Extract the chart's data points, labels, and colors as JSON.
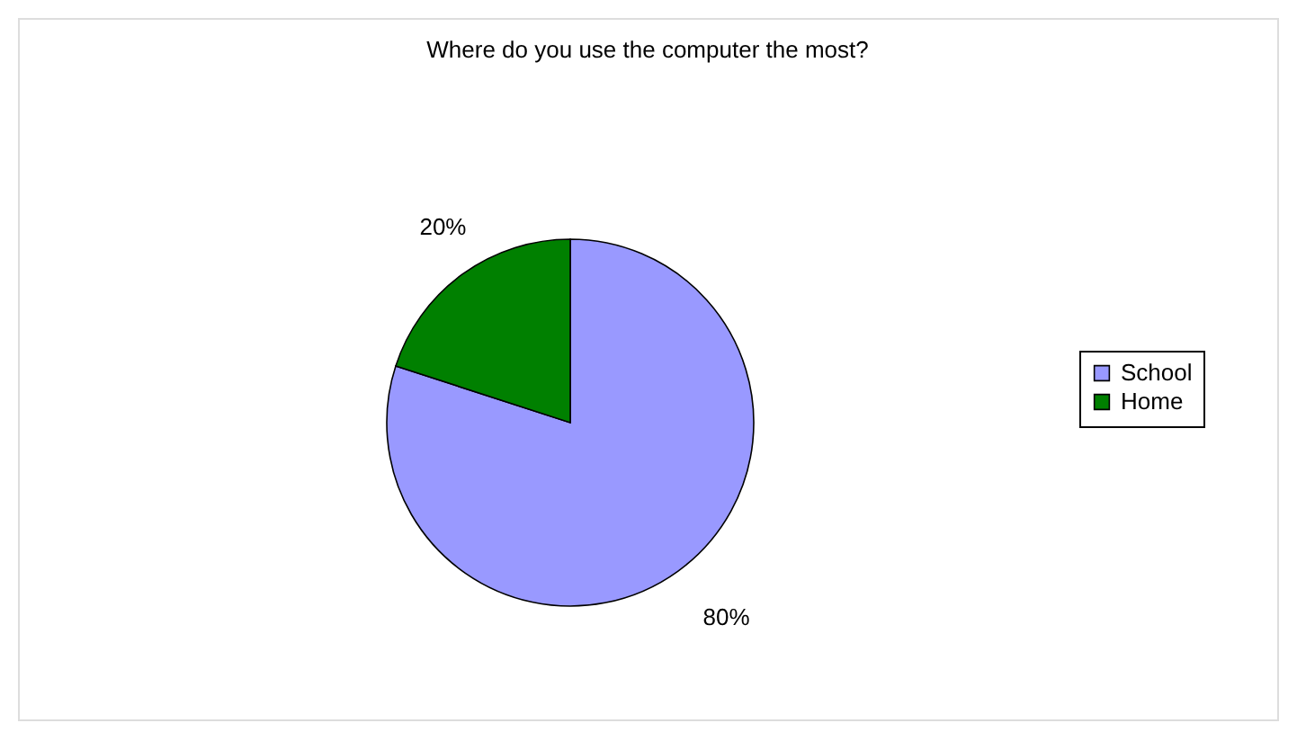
{
  "chart_data": {
    "type": "pie",
    "title": "Where do you use the computer the most?",
    "categories": [
      "School",
      "Home"
    ],
    "values": [
      80,
      20
    ],
    "colors": [
      "#9999ff",
      "#008000"
    ],
    "value_labels": [
      "80%",
      "20%"
    ],
    "legend": "right"
  }
}
